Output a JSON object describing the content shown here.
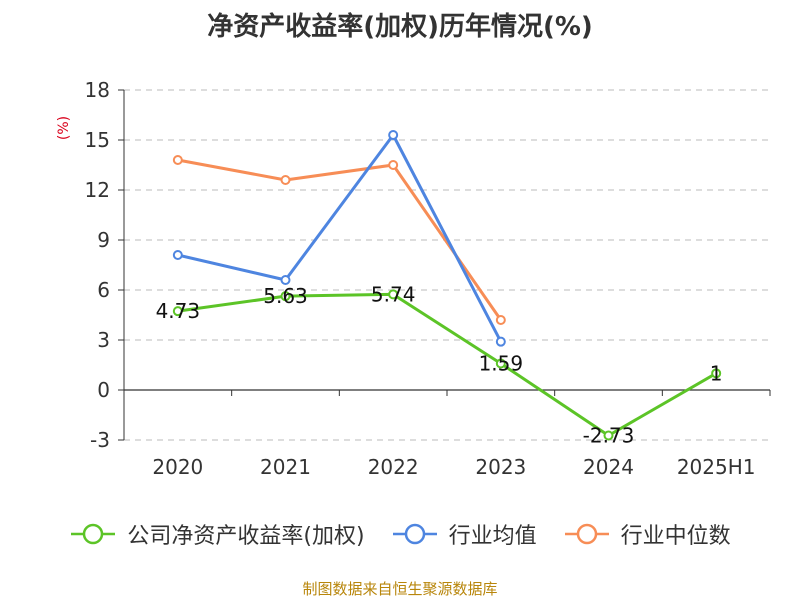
{
  "chart_data": {
    "type": "line",
    "title": "净资产收益率(加权)历年情况(%)",
    "unit_label": "(%)",
    "categories": [
      "2020",
      "2021",
      "2022",
      "2023",
      "2024",
      "2025H1"
    ],
    "ylim": [
      -3,
      18
    ],
    "yticks": [
      -3,
      0,
      3,
      6,
      9,
      12,
      15,
      18
    ],
    "grid": true,
    "legend_position": "bottom",
    "series": [
      {
        "name": "公司净资产收益率(加权)",
        "color": "#5cc427",
        "values": [
          4.73,
          5.63,
          5.74,
          1.59,
          -2.73,
          1
        ],
        "labels": [
          "4.73",
          "5.63",
          "5.74",
          "1.59",
          "-2.73",
          "1"
        ]
      },
      {
        "name": "行业均值",
        "color": "#4e85e0",
        "values": [
          8.1,
          6.6,
          15.3,
          2.9,
          null,
          null
        ]
      },
      {
        "name": "行业中位数",
        "color": "#f78d56",
        "values": [
          13.8,
          12.6,
          13.5,
          4.2,
          null,
          null
        ]
      }
    ],
    "source": "制图数据来自恒生聚源数据库"
  },
  "colors": {
    "unit_label": "#d9001b",
    "axis": "#333333",
    "grid": "#bbbbbb"
  }
}
